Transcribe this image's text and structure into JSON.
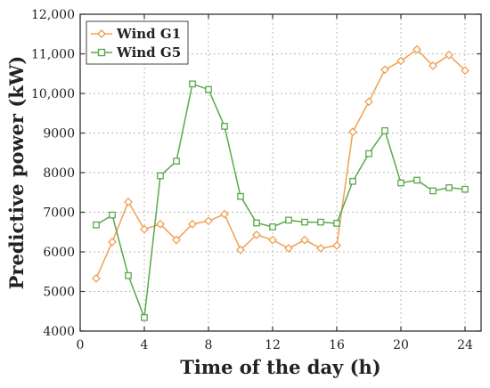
{
  "chart_data": {
    "type": "line",
    "xlabel": "Time of the day (h)",
    "ylabel": "Predictive power (kW)",
    "xlim": [
      0,
      25
    ],
    "ylim": [
      4000,
      12000
    ],
    "xticks": [
      0,
      4,
      8,
      12,
      16,
      20,
      24
    ],
    "yticks": [
      4000,
      5000,
      6000,
      7000,
      8000,
      9000,
      10000,
      11000,
      12000
    ],
    "ytick_labels": [
      "4000",
      "5000",
      "6000",
      "7000",
      "8000",
      "9000",
      "10,000",
      "11,000",
      "12,000"
    ],
    "grid": true,
    "legend_position": "top-left",
    "x": [
      1,
      2,
      3,
      4,
      5,
      6,
      7,
      8,
      9,
      10,
      11,
      12,
      13,
      14,
      15,
      16,
      17,
      18,
      19,
      20,
      21,
      22,
      23,
      24
    ],
    "series": [
      {
        "name": "Wind G1",
        "color": "#f0a050",
        "marker": "diamond",
        "values": [
          5330,
          6250,
          7260,
          6570,
          6700,
          6300,
          6700,
          6780,
          6950,
          6050,
          6430,
          6300,
          6090,
          6300,
          6090,
          6160,
          9030,
          9790,
          10600,
          10820,
          11110,
          10700,
          10970,
          10580
        ]
      },
      {
        "name": "Wind G5",
        "color": "#5aa84a",
        "marker": "square",
        "values": [
          6680,
          6930,
          5400,
          4340,
          7920,
          8290,
          10240,
          10100,
          9170,
          7400,
          6730,
          6630,
          6800,
          6750,
          6750,
          6720,
          7780,
          8480,
          9060,
          7740,
          7810,
          7540,
          7620,
          7580
        ]
      }
    ]
  }
}
